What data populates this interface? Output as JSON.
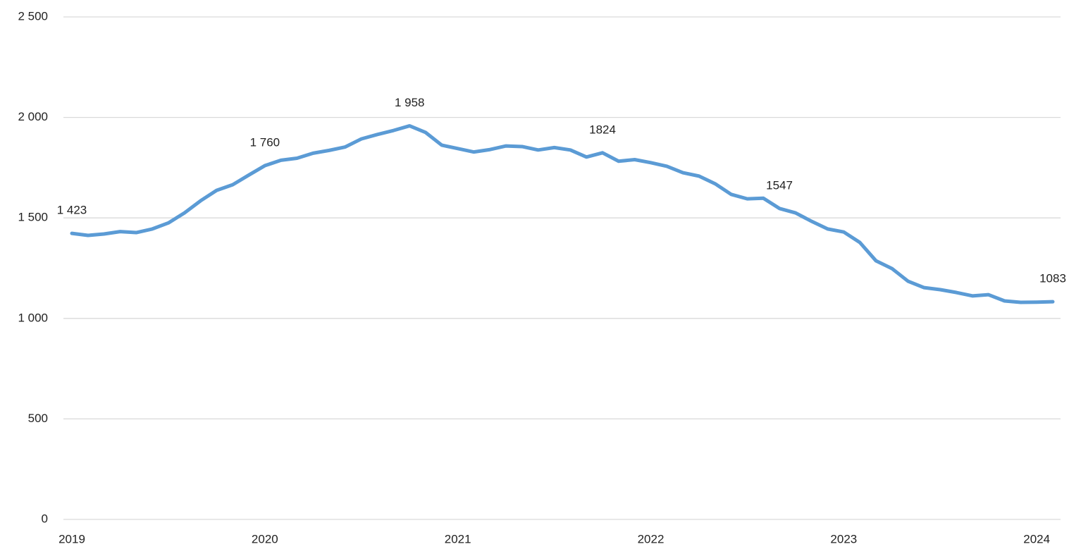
{
  "chart_data": {
    "type": "line",
    "categories": [
      "2019",
      null,
      null,
      null,
      null,
      null,
      null,
      null,
      null,
      null,
      null,
      null,
      "2020",
      null,
      null,
      null,
      null,
      null,
      null,
      null,
      null,
      null,
      null,
      null,
      "2021",
      null,
      null,
      null,
      null,
      null,
      null,
      null,
      null,
      null,
      null,
      null,
      "2022",
      null,
      null,
      null,
      null,
      null,
      null,
      null,
      null,
      null,
      null,
      null,
      "2023",
      null,
      null,
      null,
      null,
      null,
      null,
      null,
      null,
      null,
      null,
      null,
      "2024",
      null
    ],
    "series": [
      {
        "color": "#5b9bd5",
        "values": [
          1423,
          1413,
          1420,
          1432,
          1427,
          1445,
          1475,
          1525,
          1585,
          1637,
          1665,
          1713,
          1760,
          1787,
          1797,
          1822,
          1836,
          1853,
          1893,
          1915,
          1935,
          1958,
          1925,
          1862,
          1845,
          1828,
          1840,
          1858,
          1855,
          1838,
          1850,
          1838,
          1803,
          1824,
          1782,
          1790,
          1775,
          1757,
          1725,
          1708,
          1670,
          1617,
          1595,
          1598,
          1547,
          1525,
          1483,
          1445,
          1430,
          1378,
          1287,
          1248,
          1185,
          1153,
          1143,
          1129,
          1112,
          1118,
          1087,
          1080,
          1081,
          1083
        ],
        "value_labels": [
          "1 423",
          null,
          null,
          null,
          null,
          null,
          null,
          null,
          null,
          null,
          null,
          null,
          "1 760",
          null,
          null,
          null,
          null,
          null,
          null,
          null,
          null,
          "1 958",
          null,
          null,
          null,
          null,
          null,
          null,
          null,
          null,
          null,
          null,
          null,
          "1824",
          null,
          null,
          null,
          null,
          null,
          null,
          null,
          null,
          null,
          null,
          "1547",
          null,
          null,
          null,
          null,
          null,
          null,
          null,
          null,
          null,
          null,
          null,
          null,
          null,
          null,
          null,
          null,
          "1083"
        ]
      }
    ],
    "ylim": [
      0,
      2500
    ],
    "yticks": [
      0,
      500,
      {
        "value": 1000,
        "label": "1 000"
      },
      {
        "value": 1500,
        "label": "1 500"
      },
      {
        "value": 2000,
        "label": "2 000"
      },
      {
        "value": 2500,
        "label": "2 500"
      }
    ],
    "grid": true
  }
}
